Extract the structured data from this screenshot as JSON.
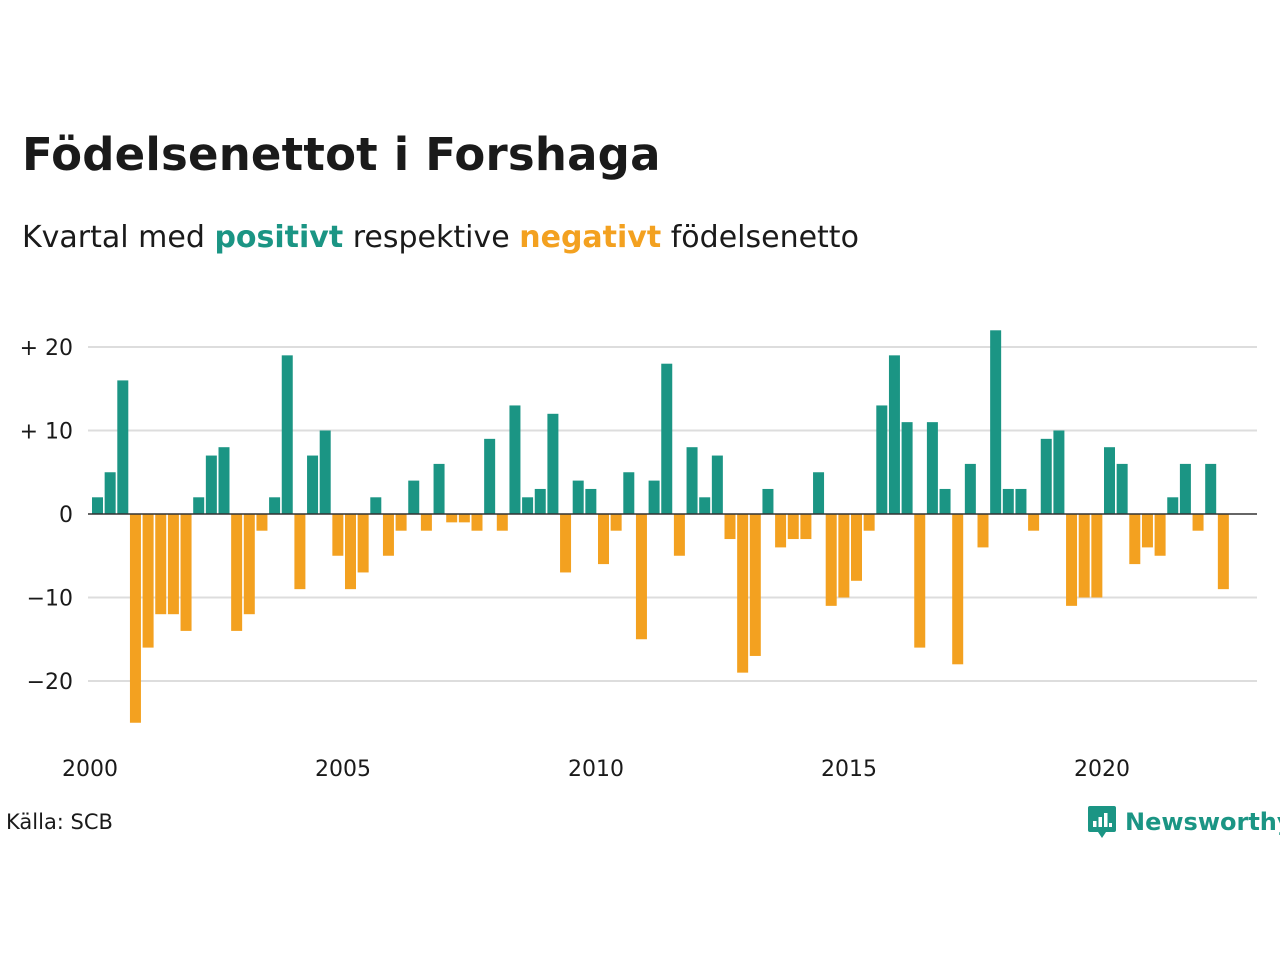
{
  "title": "Födelsenettot i Forshaga",
  "subtitle": {
    "prefix": "Kvartal med",
    "positive_word": "positivt",
    "middle": "respektive",
    "negative_word": "negativt",
    "suffix": "födelsenetto"
  },
  "source": "Källa: SCB",
  "brand": {
    "name": "Newsworthy",
    "icon": "newsworthy-logo-icon"
  },
  "colors": {
    "positive": "#1b9584",
    "negative": "#f3a120",
    "grid": "#dddddd",
    "text": "#1a1a1a"
  },
  "chart_data": {
    "type": "bar",
    "x_start": "2000 Q1",
    "x_tick_labels": [
      "2000",
      "2005",
      "2010",
      "2015",
      "2020"
    ],
    "y_tick_labels": [
      "+ 20",
      "+ 10",
      "0",
      "−10",
      "−20"
    ],
    "ylim": [
      -25,
      22
    ],
    "grid": true,
    "values": [
      2,
      5,
      16,
      -25,
      -16,
      -12,
      -12,
      -14,
      2,
      7,
      8,
      -14,
      -12,
      -2,
      2,
      19,
      -9,
      7,
      10,
      -5,
      -9,
      -7,
      2,
      -5,
      -2,
      4,
      -2,
      6,
      -1,
      -1,
      -2,
      9,
      -2,
      13,
      2,
      3,
      12,
      -7,
      4,
      3,
      -6,
      -2,
      5,
      -15,
      4,
      18,
      -5,
      8,
      2,
      7,
      -3,
      -19,
      -17,
      3,
      -4,
      -3,
      -3,
      5,
      -11,
      -10,
      -8,
      -2,
      13,
      19,
      11,
      -16,
      11,
      3,
      -18,
      6,
      -4,
      22,
      3,
      3,
      -2,
      9,
      10,
      -11,
      -10,
      -10,
      8,
      6,
      -6,
      -4,
      -5,
      2,
      6,
      -2,
      6,
      -9
    ]
  }
}
